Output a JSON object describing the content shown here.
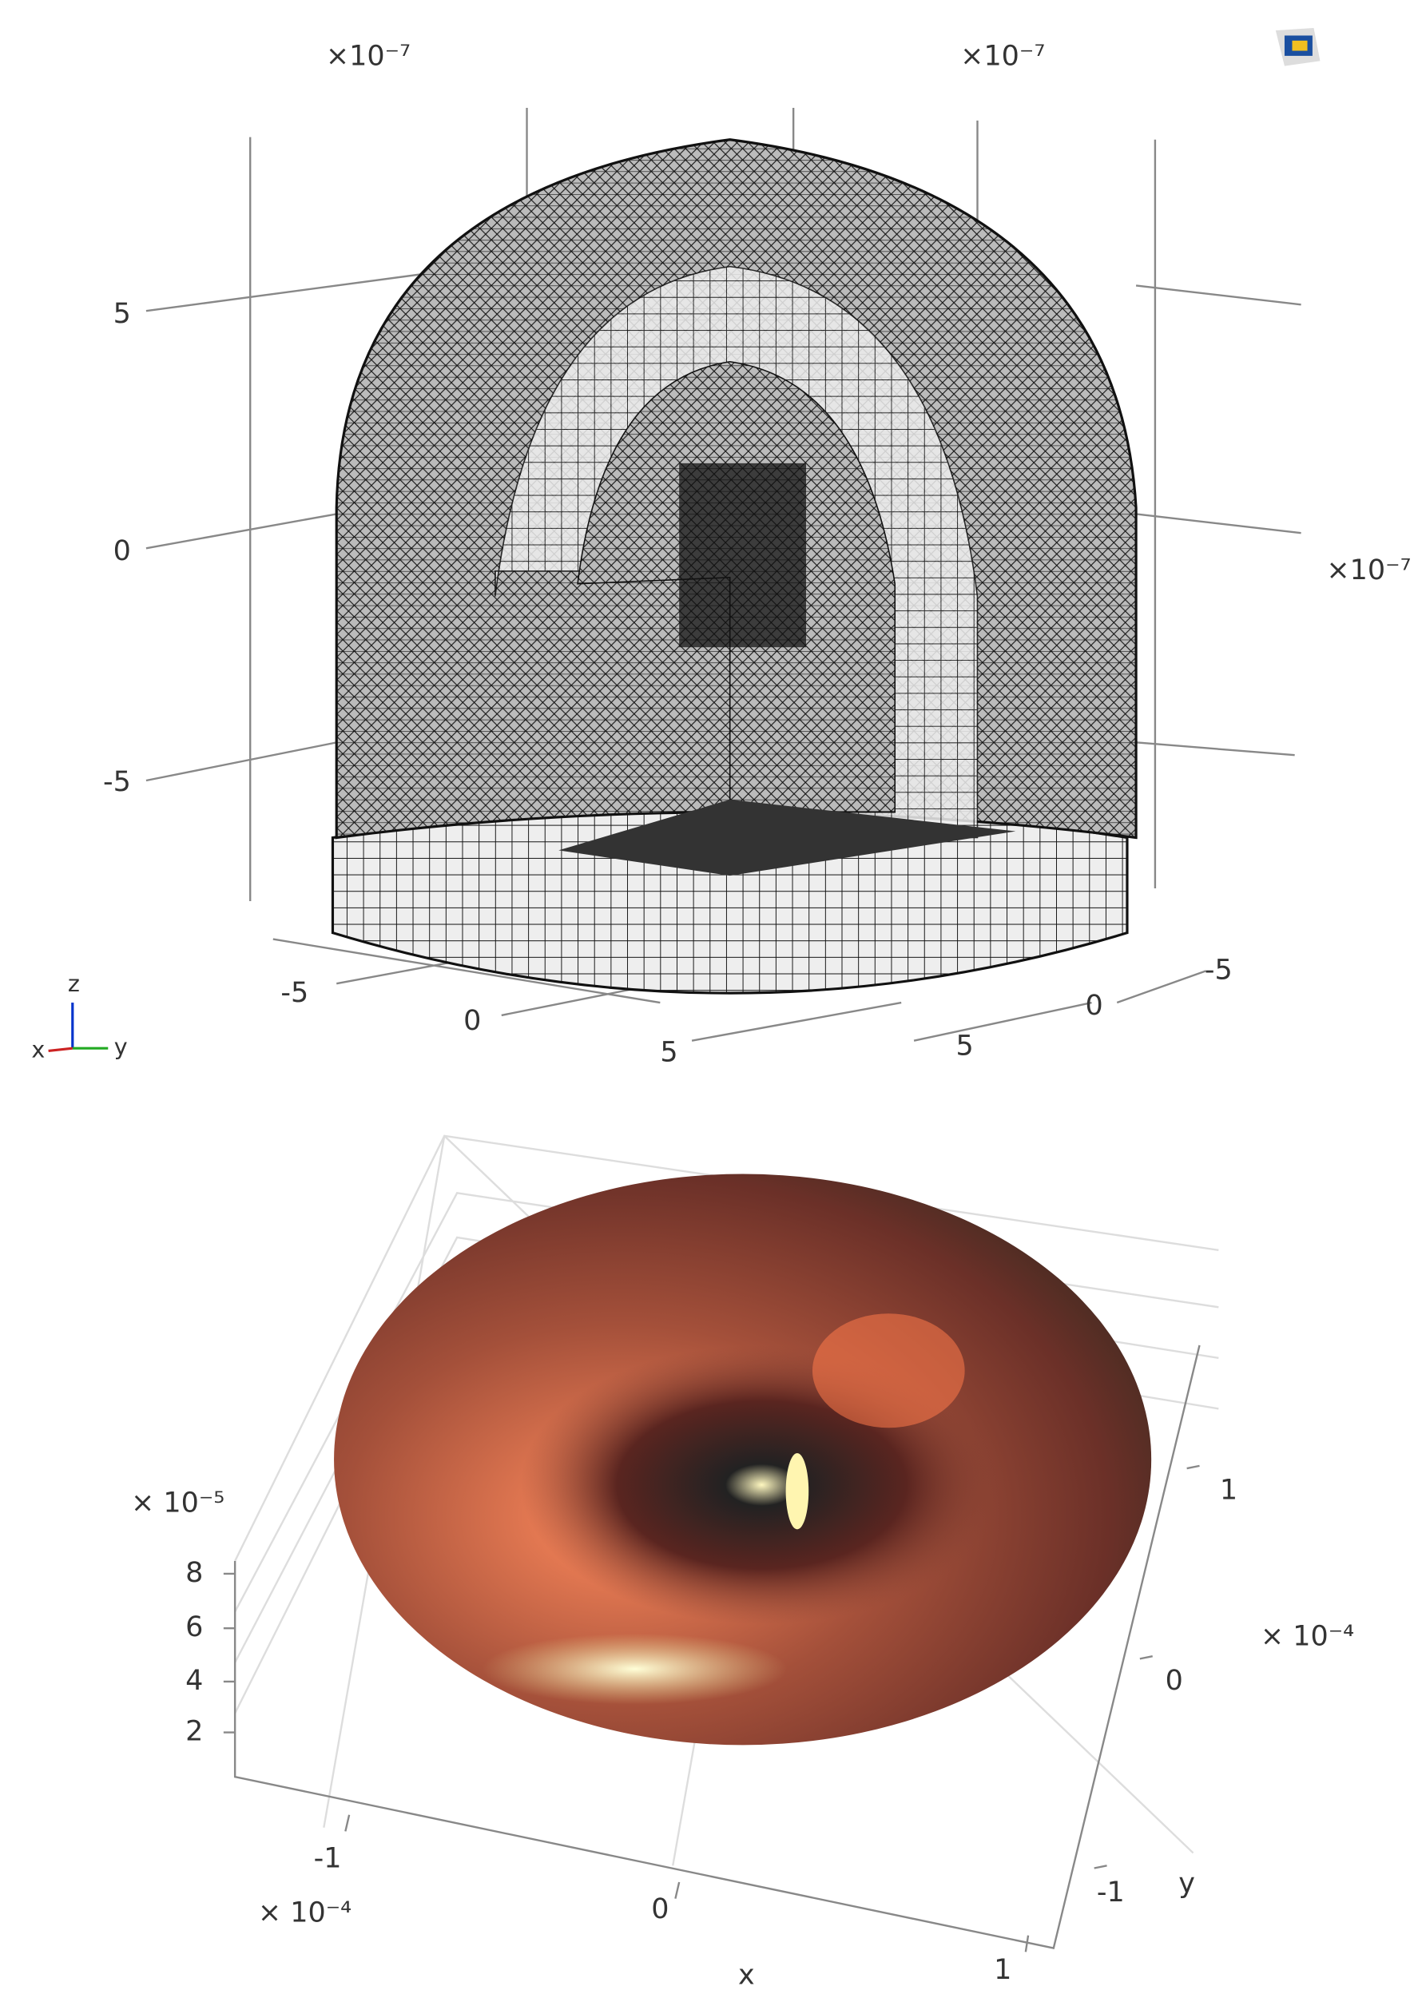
{
  "top_plot": {
    "exponent_labels": [
      "×10⁻⁷",
      "×10⁻⁷",
      "×10⁻⁷"
    ],
    "z_ticks": [
      "5",
      "0",
      "-5"
    ],
    "x_ticks": [
      "-5",
      "0",
      "5"
    ],
    "y_ticks": [
      "-5",
      "0",
      "5"
    ],
    "triad": {
      "z": "z",
      "x": "x",
      "y": "y"
    }
  },
  "bottom_plot": {
    "z_exponent": "× 10⁻⁵",
    "z_ticks": [
      "8",
      "6",
      "4",
      "2"
    ],
    "x_exponent": "× 10⁻⁴",
    "x_ticks": [
      "-1",
      "0",
      "1"
    ],
    "x_label": "x",
    "y_exponent": "× 10⁻⁴",
    "y_ticks": [
      "1",
      "0",
      "-1"
    ],
    "y_label": "y"
  }
}
